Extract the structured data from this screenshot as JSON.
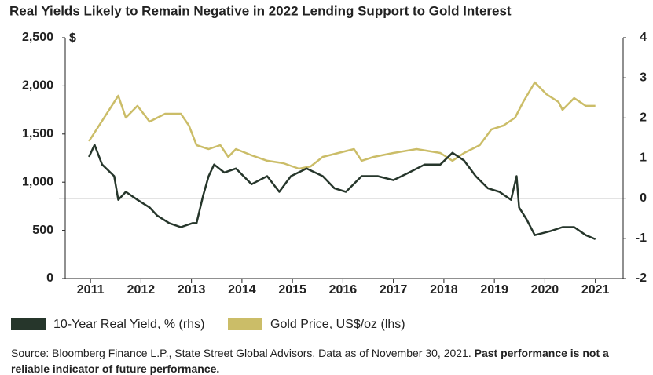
{
  "chart_data": {
    "type": "line",
    "title": "Real Yields Likely to Remain Negative in 2022 Lending Support to Gold Interest",
    "y_label": "$",
    "xlim": [
      2010.5,
      2021.55
    ],
    "xticks": [
      2011,
      2012,
      2013,
      2014,
      2015,
      2016,
      2017,
      2018,
      2019,
      2020,
      2021
    ],
    "ylim": [
      0,
      2500
    ],
    "yticks": [
      0,
      {
        "value": 500,
        "label": "500"
      },
      {
        "value": 1000,
        "label": "1,000"
      },
      {
        "value": 1500,
        "label": "1,500"
      },
      {
        "value": 2000,
        "label": "2,000"
      },
      {
        "value": 2500,
        "label": "2,500"
      }
    ],
    "y2lim": [
      -2,
      4
    ],
    "y2ticks": [
      -2,
      -1,
      0,
      1,
      2,
      3,
      4
    ],
    "y2_reference_line": 0,
    "series": [
      {
        "name": "10-Year Real Yield, % (rhs)",
        "color": "#26362b",
        "axis": "y2",
        "x": [
          2010.97,
          2011.08,
          2011.23,
          2011.47,
          2011.55,
          2011.7,
          2011.93,
          2012.17,
          2012.32,
          2012.56,
          2012.79,
          2013.02,
          2013.1,
          2013.23,
          2013.34,
          2013.45,
          2013.65,
          2013.88,
          2014.19,
          2014.5,
          2014.74,
          2014.97,
          2015.28,
          2015.6,
          2015.83,
          2016.06,
          2016.37,
          2016.69,
          2017.0,
          2017.31,
          2017.62,
          2017.93,
          2018.17,
          2018.4,
          2018.63,
          2018.87,
          2019.1,
          2019.33,
          2019.44,
          2019.49,
          2019.64,
          2019.8,
          2020.11,
          2020.35,
          2020.58,
          2020.81,
          2021.0
        ],
        "values": [
          1.03,
          1.33,
          0.84,
          0.55,
          -0.04,
          0.16,
          -0.04,
          -0.23,
          -0.43,
          -0.62,
          -0.72,
          -0.62,
          -0.62,
          0.06,
          0.55,
          0.84,
          0.64,
          0.74,
          0.35,
          0.55,
          0.16,
          0.55,
          0.74,
          0.55,
          0.25,
          0.16,
          0.55,
          0.55,
          0.45,
          0.64,
          0.84,
          0.84,
          1.13,
          0.94,
          0.55,
          0.25,
          0.16,
          -0.04,
          0.55,
          -0.23,
          -0.53,
          -0.92,
          -0.82,
          -0.72,
          -0.72,
          -0.92,
          -1.02
        ]
      },
      {
        "name": "Gold Price, US$/oz (lhs)",
        "color": "#cbbd68",
        "axis": "y",
        "x": [
          2010.97,
          2011.55,
          2011.7,
          2011.93,
          2012.17,
          2012.48,
          2012.79,
          2012.95,
          2013.1,
          2013.34,
          2013.57,
          2013.73,
          2013.88,
          2014.19,
          2014.5,
          2014.82,
          2015.13,
          2015.36,
          2015.6,
          2015.91,
          2016.22,
          2016.37,
          2016.61,
          2017.0,
          2017.46,
          2017.93,
          2018.17,
          2018.4,
          2018.71,
          2018.94,
          2019.18,
          2019.41,
          2019.57,
          2019.8,
          2020.03,
          2020.27,
          2020.35,
          2020.58,
          2020.81,
          2021.0
        ],
        "values": [
          1425,
          1897,
          1669,
          1792,
          1629,
          1710,
          1710,
          1588,
          1384,
          1344,
          1384,
          1262,
          1344,
          1279,
          1222,
          1197,
          1140,
          1164,
          1262,
          1303,
          1344,
          1222,
          1262,
          1303,
          1344,
          1303,
          1222,
          1303,
          1384,
          1547,
          1588,
          1669,
          1832,
          2036,
          1914,
          1832,
          1751,
          1873,
          1792,
          1792
        ]
      }
    ],
    "source": "Source: Bloomberg Finance L.P., State Street Global Advisors. Data as of November 30, 2021.",
    "source_bold": "Past performance is not a reliable indicator of future performance."
  }
}
